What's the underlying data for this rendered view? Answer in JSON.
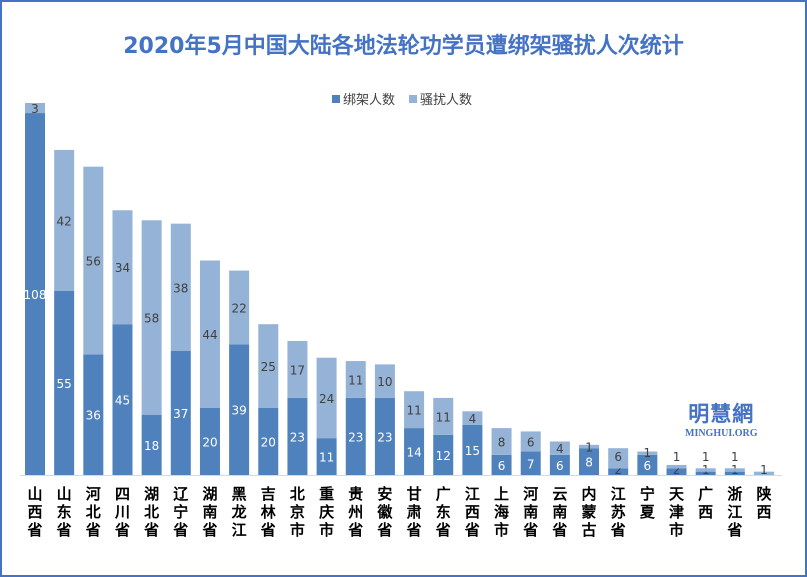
{
  "chart_data": {
    "type": "bar",
    "stacked": true,
    "title": "2020年5月中国大陆各地法轮功学员遭绑架骚扰人次统计",
    "categories": [
      "山西省",
      "山东省",
      "河北省",
      "四川省",
      "湖北省",
      "辽宁省",
      "湖南省",
      "黑龙江",
      "吉林省",
      "北京市",
      "重庆市",
      "贵州省",
      "安徽省",
      "甘肃省",
      "广东省",
      "江西省",
      "上海市",
      "河南省",
      "云南省",
      "内蒙古",
      "江苏省",
      "宁夏",
      "天津市",
      "广西",
      "浙江省",
      "陕西"
    ],
    "series": [
      {
        "name": "绑架人数",
        "color": "#4f81bd",
        "values": [
          108,
          55,
          36,
          45,
          18,
          37,
          20,
          39,
          20,
          23,
          11,
          23,
          23,
          14,
          12,
          15,
          6,
          7,
          6,
          8,
          2,
          6,
          2,
          1,
          1,
          0
        ]
      },
      {
        "name": "骚扰人数",
        "color": "#95b3d7",
        "values": [
          3,
          42,
          56,
          34,
          58,
          38,
          44,
          22,
          25,
          17,
          24,
          11,
          10,
          11,
          11,
          4,
          8,
          6,
          4,
          1,
          6,
          1,
          1,
          1,
          1,
          1
        ]
      }
    ],
    "ylim": [
      0,
      111
    ],
    "grid": false,
    "legend_position": "top"
  },
  "logo": {
    "cn": "明慧網",
    "en": "MINGHUI.ORG"
  }
}
